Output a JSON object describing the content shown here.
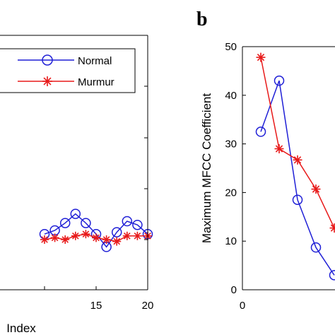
{
  "chart_data": [
    {
      "panel": "",
      "type": "line",
      "xlabel": "Index",
      "ylabel": "",
      "xlim": [
        5,
        20
      ],
      "x_ticks": [
        "15",
        "20"
      ],
      "x_tick_values": [
        15,
        20
      ],
      "series": [
        {
          "name": "Normal",
          "color": "#1f1fd6",
          "marker": "circle",
          "x": [
            10,
            11,
            12,
            13,
            14,
            15,
            16,
            17,
            18,
            19,
            20
          ],
          "values": [
            0.3,
            0.5,
            0.9,
            1.4,
            0.9,
            0.3,
            -0.4,
            0.4,
            1.0,
            0.8,
            0.3
          ]
        },
        {
          "name": "Murmur",
          "color": "#e81a1a",
          "marker": "asterisk",
          "x": [
            10,
            11,
            12,
            13,
            14,
            15,
            16,
            17,
            18,
            19,
            20
          ],
          "values": [
            0.0,
            0.1,
            0.0,
            0.2,
            0.3,
            0.1,
            0.0,
            -0.1,
            0.2,
            0.2,
            0.2
          ]
        }
      ],
      "legend": "top-right"
    },
    {
      "panel": "b",
      "type": "line",
      "xlabel": "",
      "ylabel": "Maximum MFCC Coefficient",
      "ylim": [
        0,
        50
      ],
      "y_ticks": [
        "0",
        "10",
        "20",
        "30",
        "40",
        "50"
      ],
      "y_tick_values": [
        0,
        10,
        20,
        30,
        40,
        50
      ],
      "x_ticks": [
        "0"
      ],
      "x_tick_values": [
        0
      ],
      "xlim": [
        0,
        5
      ],
      "series": [
        {
          "name": "Normal",
          "color": "#1f1fd6",
          "marker": "circle",
          "x": [
            1,
            2,
            3,
            4,
            5
          ],
          "values": [
            32.5,
            43.0,
            18.5,
            8.7,
            3.0
          ]
        },
        {
          "name": "Murmur",
          "color": "#e81a1a",
          "marker": "asterisk",
          "x": [
            1,
            2,
            3,
            4,
            5
          ],
          "values": [
            47.8,
            29.0,
            26.7,
            20.7,
            12.7
          ]
        }
      ]
    }
  ]
}
